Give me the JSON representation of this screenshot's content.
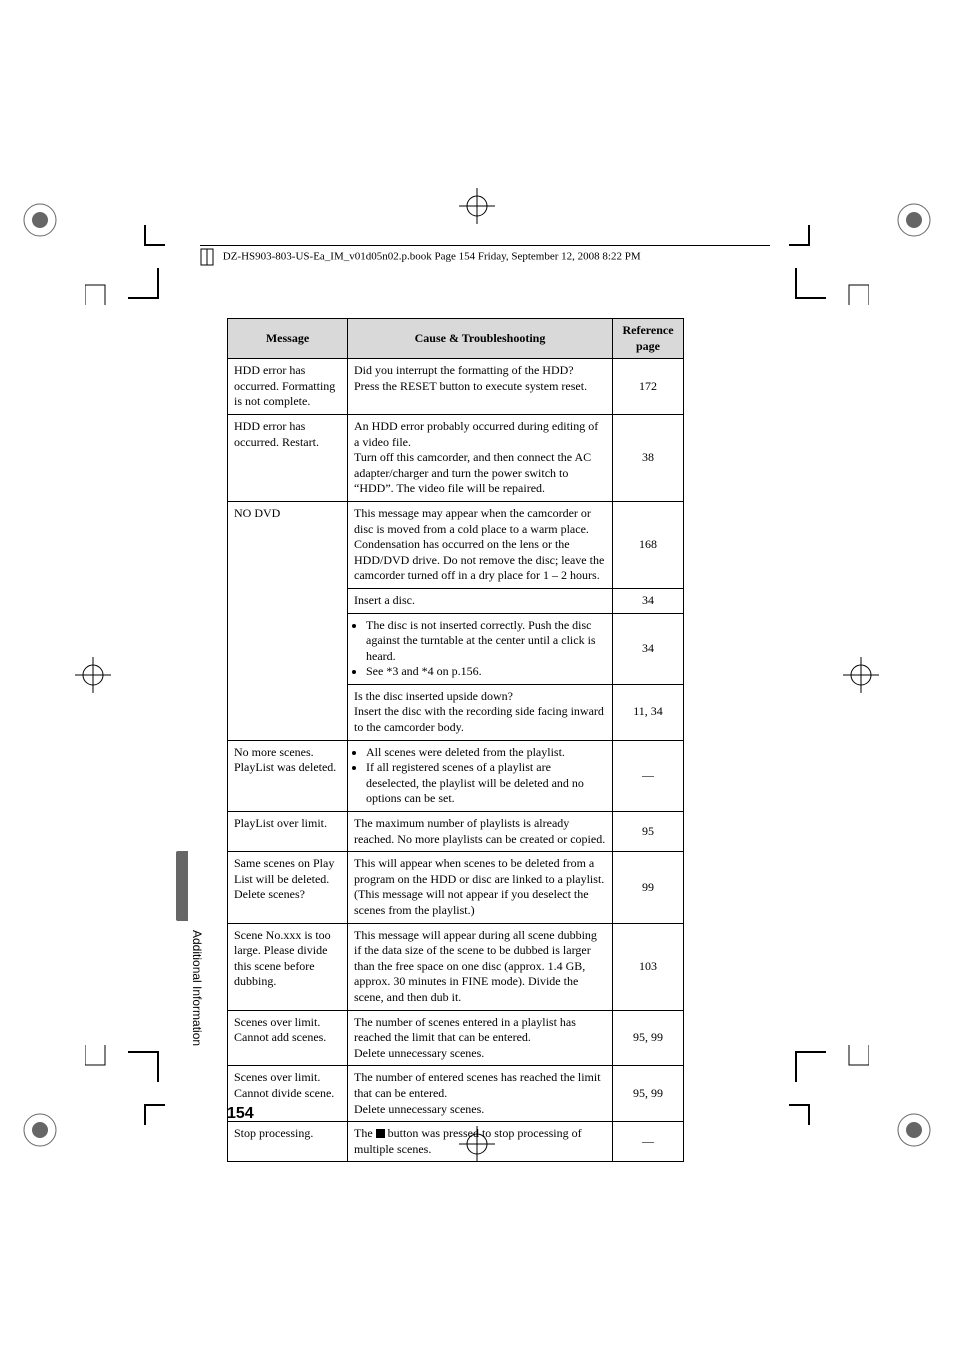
{
  "header_text": "DZ-HS903-803-US-Ea_IM_v01d05n02.p.book  Page 154  Friday, September 12, 2008  8:22 PM",
  "side_label": "Additional Information",
  "page_number": "154",
  "table": {
    "headers": {
      "message": "Message",
      "cause": "Cause & Troubleshooting",
      "ref": "Reference page"
    },
    "rows": [
      {
        "message": "HDD error has occurred. Formatting is not complete.",
        "cause_html": "Did you interrupt the formatting of the HDD?\nPress the RESET button to execute system reset.",
        "ref": "172"
      },
      {
        "message": "HDD error has occurred. Restart.",
        "cause_html": "An HDD error probably occurred during editing of a video file.\nTurn off this camcorder, and then connect the AC adapter/charger and turn the power switch to “HDD”. The video file will be repaired.",
        "ref": "38"
      },
      {
        "message": "NO DVD",
        "rowspan": 4,
        "subrows": [
          {
            "cause_html": "This message may appear when the camcorder or disc is moved from a cold place to a warm place. Condensation has occurred on the lens or the HDD/DVD drive. Do not remove the disc; leave the camcorder turned off in a dry place for 1 – 2 hours.",
            "ref": "168"
          },
          {
            "cause_html": "Insert a disc.",
            "ref": "34"
          },
          {
            "cause_bullets": [
              "The disc is not inserted correctly.\nPush the disc against the turntable at the center until a click is heard.",
              "See *3 and *4 on p.156."
            ],
            "ref": "34"
          },
          {
            "cause_html": "Is the disc inserted upside down?\nInsert the disc with the recording side facing inward to the camcorder body.",
            "ref": "11, 34"
          }
        ]
      },
      {
        "message": "No more scenes. PlayList was deleted.",
        "cause_bullets": [
          "All scenes were deleted from the playlist.",
          "If all registered scenes of a playlist are deselected, the playlist will be deleted and no options can be set."
        ],
        "ref": "—"
      },
      {
        "message": "PlayList over limit.",
        "cause_html": "The maximum number of playlists is already reached. No more playlists can be created or copied.",
        "ref": "95"
      },
      {
        "message": "Same scenes on Play List will be deleted. Delete scenes?",
        "cause_html": "This will appear when scenes to be deleted from a program on the HDD or disc are linked to a playlist. (This message will not appear if you deselect the scenes from the playlist.)",
        "ref": "99"
      },
      {
        "message": "Scene No.xxx is too large. Please divide this scene before dubbing.",
        "cause_html": "This message will appear during all scene dubbing if the data size of the scene to be dubbed is larger than the free space on one disc (approx. 1.4 GB, approx. 30 minutes in FINE mode). Divide the scene, and then dub it.",
        "ref": "103"
      },
      {
        "message": "Scenes over limit. Cannot add scenes.",
        "cause_html": "The number of scenes entered in a playlist has reached the limit that can be entered.\nDelete unnecessary scenes.",
        "ref": "95, 99"
      },
      {
        "message": "Scenes over limit. Cannot divide scene.",
        "cause_html": "The number of entered scenes has reached the limit that can be entered.\nDelete unnecessary scenes.",
        "ref": "95, 99"
      },
      {
        "message": "Stop processing.",
        "cause_stop": "button was pressed to stop processing of multiple scenes.",
        "cause_prefix": "The",
        "ref": "—"
      }
    ]
  }
}
